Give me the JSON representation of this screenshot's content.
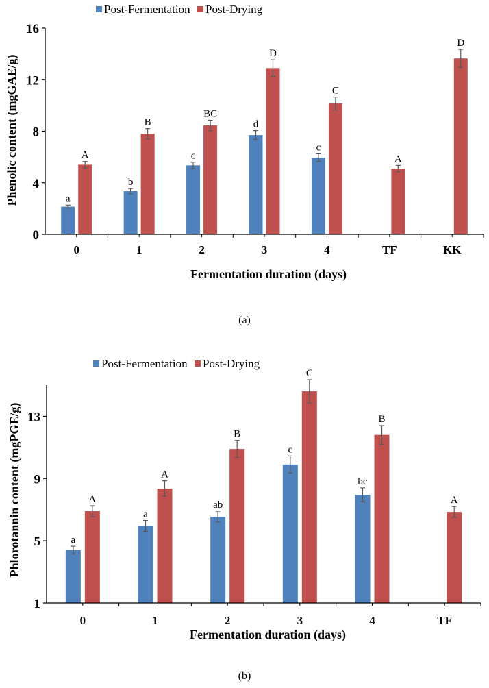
{
  "colors": {
    "post_fermentation": "#4F81BD",
    "post_drying": "#C0504D",
    "error_bar": "#595959",
    "axis": "#000000"
  },
  "chart_data": [
    {
      "type": "bar",
      "caption": "(a)",
      "title": "",
      "xlabel": "Fermentation duration (days)",
      "ylabel": "Phenolic content (mgGAE/g)",
      "ylim": [
        0,
        16
      ],
      "yticks": [
        0,
        4,
        8,
        12,
        16
      ],
      "grid": false,
      "legend_position": "top-center",
      "categories": [
        "0",
        "1",
        "2",
        "3",
        "4",
        "TF",
        "KK"
      ],
      "series": [
        {
          "name": "Post-Fermentation",
          "values": [
            2.15,
            3.35,
            5.35,
            7.7,
            5.95,
            null,
            null
          ],
          "errors": [
            0.12,
            0.2,
            0.25,
            0.35,
            0.3,
            null,
            null
          ],
          "labels": [
            "a",
            "b",
            "c",
            "d",
            "c",
            null,
            null
          ]
        },
        {
          "name": "Post-Drying",
          "values": [
            5.4,
            7.8,
            8.45,
            12.9,
            10.15,
            5.1,
            13.65
          ],
          "errors": [
            0.25,
            0.4,
            0.4,
            0.65,
            0.5,
            0.25,
            0.7
          ],
          "labels": [
            "A",
            "B",
            "BC",
            "D",
            "C",
            "A",
            "D"
          ]
        }
      ]
    },
    {
      "type": "bar",
      "caption": "(b)",
      "title": "",
      "xlabel": "Fermentation duration (days)",
      "ylabel": "Phlorotannin content (mgPGE/g)",
      "ylim": [
        1,
        15
      ],
      "yticks": [
        1,
        5,
        9,
        13
      ],
      "grid": false,
      "legend_position": "top-center",
      "categories": [
        "0",
        "1",
        "2",
        "3",
        "4",
        "TF"
      ],
      "series": [
        {
          "name": "Post-Fermentation",
          "values": [
            4.4,
            5.95,
            6.55,
            9.9,
            7.95,
            null
          ],
          "errors": [
            0.25,
            0.35,
            0.35,
            0.55,
            0.45,
            null
          ],
          "labels": [
            "a",
            "a",
            "ab",
            "c",
            "bc",
            null
          ]
        },
        {
          "name": "Post-Drying",
          "values": [
            6.9,
            8.35,
            10.9,
            14.6,
            11.8,
            6.85
          ],
          "errors": [
            0.35,
            0.5,
            0.55,
            0.75,
            0.6,
            0.35
          ],
          "labels": [
            "A",
            "A",
            "B",
            "C",
            "B",
            "A"
          ]
        }
      ]
    }
  ]
}
